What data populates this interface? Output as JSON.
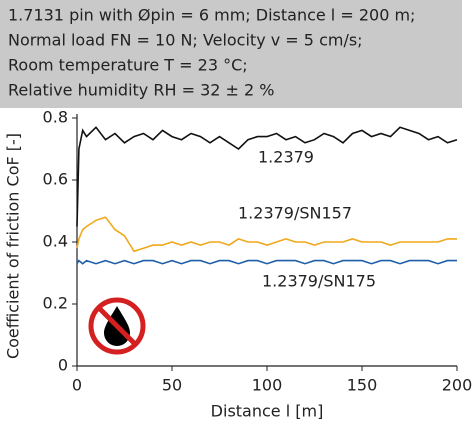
{
  "chart_data": {
    "type": "line",
    "header": [
      "1.7131 pin with Øpin = 6 mm; Distance l = 200 m;",
      "Normal load FN = 10 N; Velocity v = 5 cm/s;",
      "Room temperature T = 23 °C;",
      "Relative humidity RH = 32 ± 2 %"
    ],
    "x_label": "Distance l [m]",
    "y_label": "Coefficient of friction CoF [-]",
    "xlim": [
      0,
      200
    ],
    "xticks": [
      0,
      50,
      100,
      150,
      200
    ],
    "ylim": [
      0,
      0.8
    ],
    "yticks": [
      0,
      0.2,
      0.4,
      0.6,
      0.8
    ],
    "x": [
      0,
      1,
      3,
      5,
      10,
      15,
      20,
      25,
      30,
      35,
      40,
      45,
      50,
      55,
      60,
      65,
      70,
      75,
      80,
      85,
      90,
      95,
      100,
      105,
      110,
      115,
      120,
      125,
      130,
      135,
      140,
      145,
      150,
      155,
      160,
      165,
      170,
      175,
      180,
      185,
      190,
      195,
      200
    ],
    "series": [
      {
        "name": "1.2379",
        "color": "#111111",
        "values": [
          0.45,
          0.7,
          0.76,
          0.74,
          0.77,
          0.73,
          0.75,
          0.72,
          0.74,
          0.75,
          0.73,
          0.76,
          0.74,
          0.73,
          0.75,
          0.74,
          0.72,
          0.74,
          0.72,
          0.7,
          0.73,
          0.74,
          0.74,
          0.75,
          0.73,
          0.74,
          0.72,
          0.73,
          0.75,
          0.74,
          0.72,
          0.75,
          0.76,
          0.74,
          0.75,
          0.74,
          0.77,
          0.76,
          0.75,
          0.73,
          0.74,
          0.72,
          0.73
        ]
      },
      {
        "name": "1.2379/SN157",
        "color": "#f0a81c",
        "values": [
          0.38,
          0.41,
          0.44,
          0.45,
          0.47,
          0.48,
          0.44,
          0.42,
          0.37,
          0.38,
          0.39,
          0.39,
          0.4,
          0.39,
          0.4,
          0.39,
          0.4,
          0.4,
          0.39,
          0.41,
          0.4,
          0.4,
          0.39,
          0.4,
          0.41,
          0.4,
          0.4,
          0.39,
          0.4,
          0.4,
          0.4,
          0.41,
          0.4,
          0.4,
          0.4,
          0.39,
          0.4,
          0.4,
          0.4,
          0.4,
          0.4,
          0.41,
          0.41
        ]
      },
      {
        "name": "1.2379/SN175",
        "color": "#1f5fa8",
        "values": [
          0.33,
          0.34,
          0.33,
          0.34,
          0.33,
          0.34,
          0.33,
          0.34,
          0.33,
          0.34,
          0.34,
          0.33,
          0.34,
          0.33,
          0.34,
          0.34,
          0.33,
          0.34,
          0.34,
          0.33,
          0.34,
          0.34,
          0.33,
          0.34,
          0.34,
          0.34,
          0.33,
          0.34,
          0.34,
          0.33,
          0.34,
          0.34,
          0.34,
          0.33,
          0.34,
          0.34,
          0.33,
          0.34,
          0.34,
          0.34,
          0.33,
          0.34,
          0.34
        ]
      }
    ]
  }
}
